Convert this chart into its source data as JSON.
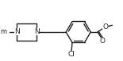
{
  "bg_color": "#ffffff",
  "line_color": "#222222",
  "line_width": 1.0,
  "figsize": [
    1.55,
    0.78
  ],
  "dpi": 100,
  "xlim": [
    0,
    155
  ],
  "ylim": [
    0,
    78
  ]
}
